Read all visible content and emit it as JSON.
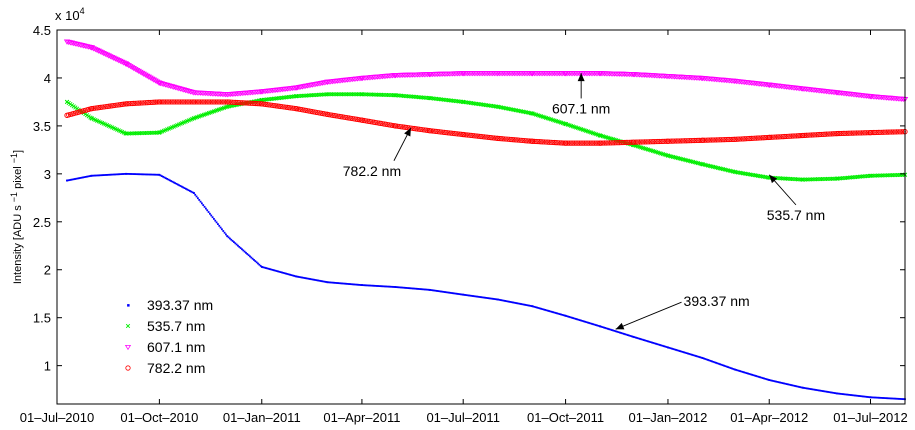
{
  "chart_data": {
    "type": "scatter",
    "title": "",
    "ylabel": "Intensity [ADU s −1 pixel −1]",
    "ylabel_parts": [
      "Intensity [ADU s ",
      "−1",
      " pixel ",
      "−1",
      "]"
    ],
    "xlabel": "",
    "y_exponent_label": "x 10",
    "y_exponent_power": "4",
    "ylim": [
      6000,
      45000
    ],
    "xlim": [
      "2010-07-01",
      "2012-08-01"
    ],
    "grid": false,
    "legend_position": "bottom-left",
    "x_ticks": [
      {
        "date": "2010-07-01",
        "label": "01–Jul–2010"
      },
      {
        "date": "2010-10-01",
        "label": "01–Oct–2010"
      },
      {
        "date": "2011-01-01",
        "label": "01–Jan–2011"
      },
      {
        "date": "2011-04-01",
        "label": "01–Apr–2011"
      },
      {
        "date": "2011-07-01",
        "label": "01–Jul–2011"
      },
      {
        "date": "2011-10-01",
        "label": "01–Oct–2011"
      },
      {
        "date": "2012-01-01",
        "label": "01–Jan–2012"
      },
      {
        "date": "2012-04-01",
        "label": "01–Apr–2012"
      },
      {
        "date": "2012-07-01",
        "label": "01–Jul–2012"
      }
    ],
    "y_ticks": [
      {
        "value": 10000,
        "label": "1"
      },
      {
        "value": 15000,
        "label": "1.5"
      },
      {
        "value": 20000,
        "label": "2"
      },
      {
        "value": 25000,
        "label": "2.5"
      },
      {
        "value": 30000,
        "label": "3"
      },
      {
        "value": 35000,
        "label": "3.5"
      },
      {
        "value": 40000,
        "label": "4"
      },
      {
        "value": 45000,
        "label": "4.5"
      }
    ],
    "series": [
      {
        "name": "393.37 nm",
        "color": "#0000ff",
        "marker": "dot",
        "points": [
          [
            "2010-07-10",
            29300
          ],
          [
            "2010-08-01",
            29800
          ],
          [
            "2010-09-01",
            30000
          ],
          [
            "2010-10-01",
            29900
          ],
          [
            "2010-11-01",
            28000
          ],
          [
            "2010-12-01",
            23500
          ],
          [
            "2011-01-01",
            20300
          ],
          [
            "2011-02-01",
            19300
          ],
          [
            "2011-03-01",
            18700
          ],
          [
            "2011-04-01",
            18400
          ],
          [
            "2011-05-01",
            18200
          ],
          [
            "2011-06-01",
            17900
          ],
          [
            "2011-07-01",
            17400
          ],
          [
            "2011-08-01",
            16900
          ],
          [
            "2011-09-01",
            16200
          ],
          [
            "2011-10-01",
            15200
          ],
          [
            "2011-11-01",
            14100
          ],
          [
            "2011-12-01",
            13000
          ],
          [
            "2012-01-01",
            11900
          ],
          [
            "2012-02-01",
            10800
          ],
          [
            "2012-03-01",
            9600
          ],
          [
            "2012-04-01",
            8500
          ],
          [
            "2012-05-01",
            7700
          ],
          [
            "2012-06-01",
            7100
          ],
          [
            "2012-07-01",
            6700
          ],
          [
            "2012-08-01",
            6500
          ]
        ]
      },
      {
        "name": "535.7 nm",
        "color": "#00ee00",
        "marker": "x",
        "points": [
          [
            "2010-07-10",
            37500
          ],
          [
            "2010-08-01",
            35800
          ],
          [
            "2010-09-01",
            34200
          ],
          [
            "2010-10-01",
            34300
          ],
          [
            "2010-11-01",
            35800
          ],
          [
            "2010-12-01",
            37000
          ],
          [
            "2011-01-01",
            37700
          ],
          [
            "2011-02-01",
            38100
          ],
          [
            "2011-03-01",
            38300
          ],
          [
            "2011-04-01",
            38300
          ],
          [
            "2011-05-01",
            38200
          ],
          [
            "2011-06-01",
            37900
          ],
          [
            "2011-07-01",
            37500
          ],
          [
            "2011-08-01",
            37000
          ],
          [
            "2011-09-01",
            36300
          ],
          [
            "2011-10-01",
            35200
          ],
          [
            "2011-11-01",
            34000
          ],
          [
            "2011-12-01",
            33000
          ],
          [
            "2012-01-01",
            31900
          ],
          [
            "2012-02-01",
            31000
          ],
          [
            "2012-03-01",
            30200
          ],
          [
            "2012-04-01",
            29600
          ],
          [
            "2012-05-01",
            29400
          ],
          [
            "2012-06-01",
            29500
          ],
          [
            "2012-07-01",
            29800
          ],
          [
            "2012-08-01",
            29900
          ]
        ]
      },
      {
        "name": "607.1 nm",
        "color": "#ff00ff",
        "marker": "triangle-down",
        "points": [
          [
            "2010-07-10",
            43800
          ],
          [
            "2010-08-01",
            43200
          ],
          [
            "2010-09-01",
            41500
          ],
          [
            "2010-10-01",
            39500
          ],
          [
            "2010-11-01",
            38500
          ],
          [
            "2010-12-01",
            38300
          ],
          [
            "2011-01-01",
            38600
          ],
          [
            "2011-02-01",
            39000
          ],
          [
            "2011-03-01",
            39600
          ],
          [
            "2011-04-01",
            40000
          ],
          [
            "2011-05-01",
            40300
          ],
          [
            "2011-06-01",
            40400
          ],
          [
            "2011-07-01",
            40500
          ],
          [
            "2011-08-01",
            40500
          ],
          [
            "2011-09-01",
            40500
          ],
          [
            "2011-10-01",
            40500
          ],
          [
            "2011-11-01",
            40500
          ],
          [
            "2011-12-01",
            40400
          ],
          [
            "2012-01-01",
            40200
          ],
          [
            "2012-02-01",
            40000
          ],
          [
            "2012-03-01",
            39700
          ],
          [
            "2012-04-01",
            39300
          ],
          [
            "2012-05-01",
            38900
          ],
          [
            "2012-06-01",
            38500
          ],
          [
            "2012-07-01",
            38100
          ],
          [
            "2012-08-01",
            37800
          ]
        ]
      },
      {
        "name": "782.2 nm",
        "color": "#ff0000",
        "marker": "circle",
        "points": [
          [
            "2010-07-10",
            36100
          ],
          [
            "2010-08-01",
            36800
          ],
          [
            "2010-09-01",
            37300
          ],
          [
            "2010-10-01",
            37500
          ],
          [
            "2010-11-01",
            37500
          ],
          [
            "2010-12-01",
            37500
          ],
          [
            "2011-01-01",
            37300
          ],
          [
            "2011-02-01",
            36800
          ],
          [
            "2011-03-01",
            36200
          ],
          [
            "2011-04-01",
            35600
          ],
          [
            "2011-05-01",
            35000
          ],
          [
            "2011-06-01",
            34500
          ],
          [
            "2011-07-01",
            34100
          ],
          [
            "2011-08-01",
            33700
          ],
          [
            "2011-09-01",
            33400
          ],
          [
            "2011-10-01",
            33200
          ],
          [
            "2011-11-01",
            33200
          ],
          [
            "2011-12-01",
            33300
          ],
          [
            "2012-01-01",
            33400
          ],
          [
            "2012-02-01",
            33500
          ],
          [
            "2012-03-01",
            33600
          ],
          [
            "2012-04-01",
            33800
          ],
          [
            "2012-05-01",
            34000
          ],
          [
            "2012-06-01",
            34200
          ],
          [
            "2012-07-01",
            34300
          ],
          [
            "2012-08-01",
            34400
          ]
        ]
      }
    ],
    "annotations": [
      {
        "text": "607.1 nm",
        "point": [
          "2011-10-15",
          40500
        ],
        "anchor": "top-middle",
        "label_offset_date": "2011-10-15",
        "label_y": 36300
      },
      {
        "text": "782.2 nm",
        "point": [
          "2011-05-15",
          34800
        ],
        "anchor": "top-right",
        "label_offset_date": "2011-04-10",
        "label_y": 29800
      },
      {
        "text": "535.7 nm",
        "point": [
          "2012-04-01",
          29900
        ],
        "anchor": "top-middle",
        "label_offset_date": "2012-04-25",
        "label_y": 25200
      },
      {
        "text": "393.37 nm",
        "point": [
          "2011-11-15",
          13800
        ],
        "anchor": "middle-left",
        "label_offset_date": "2012-01-15",
        "label_y": 16200
      }
    ]
  }
}
